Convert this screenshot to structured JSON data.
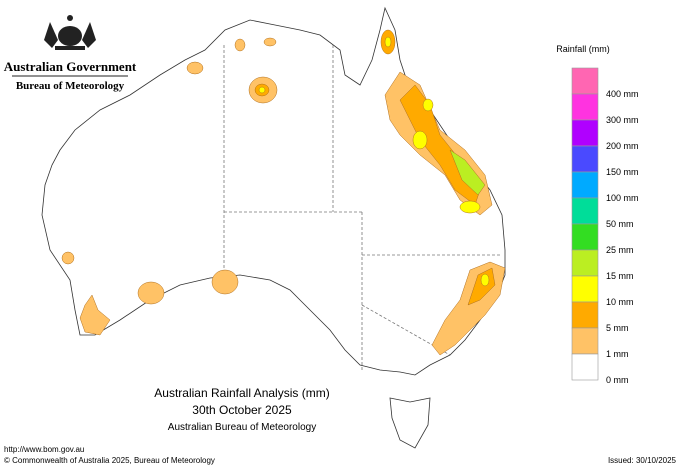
{
  "header": {
    "government": "Australian Government",
    "agency": "Bureau of Meteorology"
  },
  "map_title": {
    "line1": "Australian Rainfall Analysis (mm)",
    "line2": "30th October 2025",
    "line3": "Australian Bureau of Meteorology"
  },
  "legend": {
    "title": "Rainfall (mm)",
    "items": [
      {
        "label": "400 mm",
        "color": "#ff66b2"
      },
      {
        "label": "300 mm",
        "color": "#ff33e0"
      },
      {
        "label": "200 mm",
        "color": "#b000ff"
      },
      {
        "label": "150 mm",
        "color": "#4a4aff"
      },
      {
        "label": "100 mm",
        "color": "#00aaff"
      },
      {
        "label": "50 mm",
        "color": "#00dd99"
      },
      {
        "label": "25 mm",
        "color": "#33dd22"
      },
      {
        "label": "15 mm",
        "color": "#bbee22"
      },
      {
        "label": "10 mm",
        "color": "#ffff00"
      },
      {
        "label": "5 mm",
        "color": "#ffaa00"
      },
      {
        "label": "1 mm",
        "color": "#ffc266"
      },
      {
        "label": "0 mm",
        "color": "#ffffff"
      }
    ]
  },
  "footer": {
    "url": "http://www.bom.gov.au",
    "copyright": "© Commonwealth of Australia 2025, Bureau of Meteorology",
    "issued": "Issued: 30/10/2025"
  }
}
